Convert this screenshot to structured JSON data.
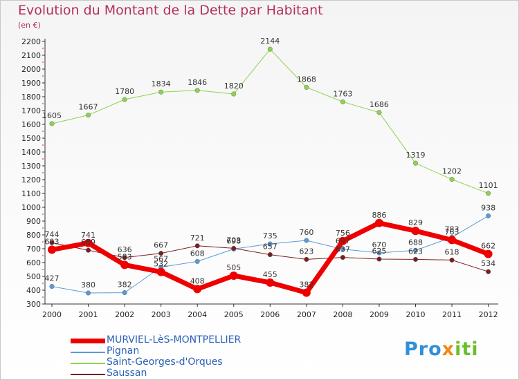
{
  "title": "Evolution du Montant de la Dette par Habitant",
  "subtitle": "(en €)",
  "logo": {
    "part1": "Pro",
    "part2": "x",
    "part3": "iti"
  },
  "chart_data": {
    "type": "line",
    "x": [
      "2000",
      "2001",
      "2002",
      "2003",
      "2004",
      "2005",
      "2006",
      "2007",
      "2008",
      "2009",
      "2010",
      "2011",
      "2012"
    ],
    "ylim": [
      300,
      2200
    ],
    "yticks": [
      300,
      400,
      500,
      600,
      700,
      800,
      900,
      1000,
      1100,
      1200,
      1300,
      1400,
      1500,
      1600,
      1700,
      1800,
      1900,
      2000,
      2100,
      2200
    ],
    "grid": false,
    "legend_position": "bottom-left",
    "series": [
      {
        "name": "MURVIEL-LèS-MONTPELLIER",
        "color": "#ee0000",
        "values": [
          693,
          741,
          583,
          532,
          408,
          505,
          455,
          382,
          756,
          886,
          829,
          763,
          662
        ]
      },
      {
        "name": "Pignan",
        "color": "#5b9bd5",
        "values": [
          427,
          380,
          382,
          567,
          608,
          698,
          735,
          760,
          697,
          670,
          688,
          783,
          938
        ]
      },
      {
        "name": "Saint-Georges-d'Orques",
        "color": "#8fd24e",
        "values": [
          1605,
          1667,
          1780,
          1834,
          1846,
          1820,
          2144,
          1868,
          1763,
          1686,
          1319,
          1202,
          1101
        ]
      },
      {
        "name": "Saussan",
        "color": "#7a1f1f",
        "values": [
          744,
          689,
          636,
          667,
          721,
          703,
          657,
          623,
          637,
          625,
          623,
          618,
          534
        ]
      }
    ]
  }
}
